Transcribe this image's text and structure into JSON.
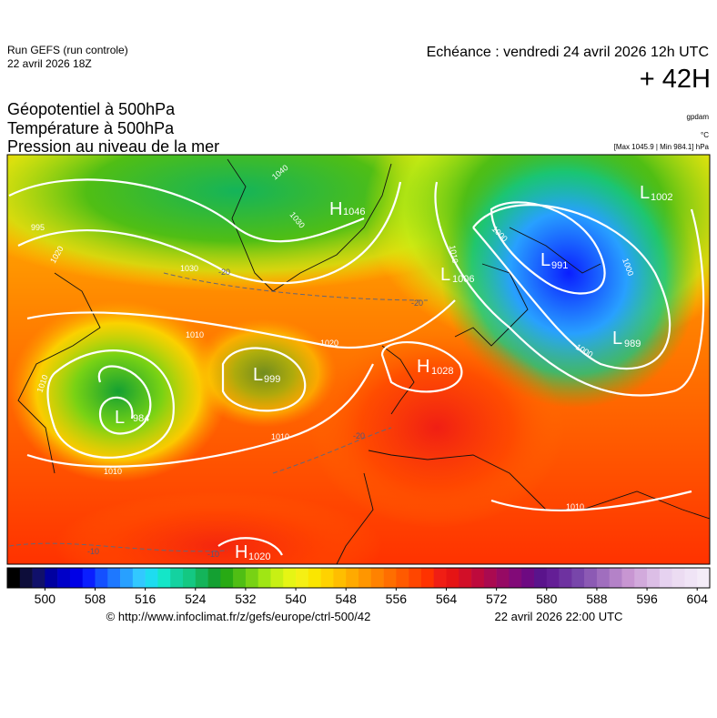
{
  "header": {
    "run": "Run GEFS (run controle)",
    "run_date": "22 avril 2026 18Z",
    "valid": "Echéance : vendredi 24 avril 2026 12h UTC",
    "lead": "+ 42H",
    "titles": [
      "Géopotentiel à 500hPa",
      "Température à 500hPa",
      "Pression au niveau de la mer"
    ],
    "units": [
      "gpdam",
      "°C",
      "[Max 1045.9 | Min 984.1] hPa"
    ]
  },
  "map": {
    "centers": [
      {
        "symbol": "L",
        "value": 984
      },
      {
        "symbol": "L",
        "value": 999
      },
      {
        "symbol": "H",
        "value": 1046
      },
      {
        "symbol": "L",
        "value": 1006
      },
      {
        "symbol": "L",
        "value": 991
      },
      {
        "symbol": "L",
        "value": 1002
      },
      {
        "symbol": "L",
        "value": 989
      },
      {
        "symbol": "H",
        "value": 1028
      },
      {
        "symbol": "H",
        "value": 1020
      }
    ],
    "isobar_labels": [
      995,
      1020,
      1030,
      1040,
      1030,
      1010,
      1020,
      1010,
      1010,
      1010,
      1010,
      1000,
      1000,
      1000,
      1010
    ],
    "isotherm_labels": [
      -20,
      -20,
      -20,
      -10,
      -10
    ]
  },
  "colorbar": {
    "lim": [
      494,
      606
    ],
    "ticks": [
      500,
      508,
      516,
      524,
      532,
      540,
      548,
      556,
      564,
      572,
      580,
      588,
      596,
      604
    ],
    "colors": [
      "#000000",
      "#0d0d3a",
      "#10106a",
      "#0000a0",
      "#0000c8",
      "#0000e6",
      "#0a1eff",
      "#1450ff",
      "#1e78ff",
      "#28a0ff",
      "#32c8ff",
      "#1edcf0",
      "#14e6c8",
      "#14d2a0",
      "#14c882",
      "#14b45a",
      "#14a032",
      "#28aa14",
      "#50be14",
      "#78d214",
      "#a0e614",
      "#c8f014",
      "#e6f514",
      "#f5f014",
      "#fae600",
      "#ffd200",
      "#ffbe00",
      "#ffaa00",
      "#ff9600",
      "#ff8200",
      "#ff6e00",
      "#ff5a00",
      "#ff4600",
      "#ff3200",
      "#f01e14",
      "#e61414",
      "#d20f28",
      "#be0a3c",
      "#aa0a50",
      "#960a64",
      "#820a78",
      "#6e0a82",
      "#5a148c",
      "#641e96",
      "#6e32a0",
      "#7846aa",
      "#8c5ab4",
      "#a06ebe",
      "#b482c8",
      "#c896d2",
      "#d2aadc",
      "#dcbee6",
      "#e6d2f0",
      "#ecdcf2",
      "#f0e4f6",
      "#f4ecf8"
    ]
  },
  "footer": {
    "source": "© http://www.infoclimat.fr/z/gefs/europe/ctrl-500/42",
    "generated": "22 avril 2026 22:00 UTC"
  }
}
